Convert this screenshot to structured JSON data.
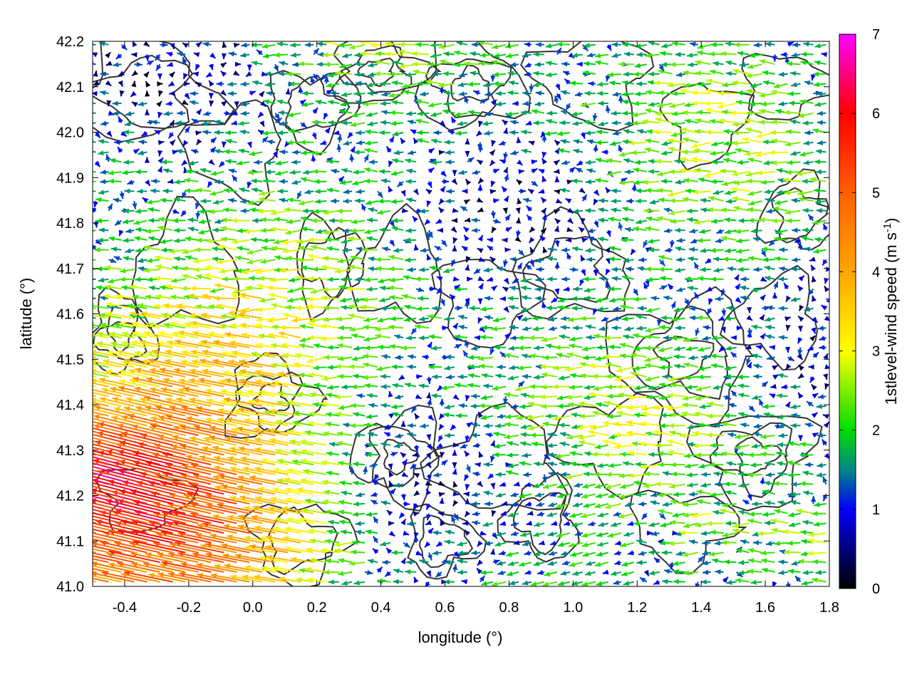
{
  "chart_data": {
    "type": "vector-field",
    "title": "",
    "xlabel": "longitude (°)",
    "ylabel": "latitude (°)",
    "xlim": [
      -0.5,
      1.8
    ],
    "ylim": [
      41.0,
      42.2
    ],
    "x_ticks": [
      -0.4,
      -0.2,
      0.0,
      0.2,
      0.4,
      0.6,
      0.8,
      1.0,
      1.2,
      1.4,
      1.6,
      1.8
    ],
    "x_tick_labels": [
      "-0.4",
      "-0.2",
      "0.0",
      "0.2",
      "0.4",
      "0.6",
      "0.8",
      "1.0",
      "1.2",
      "1.4",
      "1.6",
      "1.8"
    ],
    "y_ticks": [
      41.0,
      41.1,
      41.2,
      41.3,
      41.4,
      41.5,
      41.6,
      41.7,
      41.8,
      41.9,
      42.0,
      42.1,
      42.2
    ],
    "y_tick_labels": [
      "41.0",
      "41.1",
      "41.2",
      "41.3",
      "41.4",
      "41.5",
      "41.6",
      "41.7",
      "41.8",
      "41.9",
      "42.0",
      "42.1",
      "42.2"
    ],
    "grid": true,
    "colorbar": {
      "label_main": "1stlevel-wind speed (m s",
      "label_sup": "-1",
      "label_end": ")",
      "range": [
        0,
        7
      ],
      "ticks": [
        0,
        1,
        2,
        3,
        4,
        5,
        6,
        7
      ],
      "tick_labels": [
        "0",
        "1",
        "2",
        "3",
        "4",
        "5",
        "6",
        "7"
      ],
      "palette": [
        {
          "v": 0.0,
          "color": "#000000"
        },
        {
          "v": 1.0,
          "color": "#0000ff"
        },
        {
          "v": 1.5,
          "color": "#008888"
        },
        {
          "v": 2.0,
          "color": "#00dd00"
        },
        {
          "v": 3.0,
          "color": "#ffff00"
        },
        {
          "v": 4.0,
          "color": "#ffa500"
        },
        {
          "v": 5.0,
          "color": "#ff6000"
        },
        {
          "v": 6.0,
          "color": "#ff0000"
        },
        {
          "v": 7.0,
          "color": "#ff00ff"
        }
      ]
    },
    "arrows": {
      "grid_dx": 0.04,
      "grid_dy": 0.0215,
      "direction": "mostly from east to west",
      "strong_region": "southwest (lon -0.5 to 0.4, lat 41.0 to 41.6), 3–6.5 m s-1",
      "weak_region": "central and eastern interior, 0.2–2 m s-1"
    },
    "contour_color": "#333333"
  }
}
